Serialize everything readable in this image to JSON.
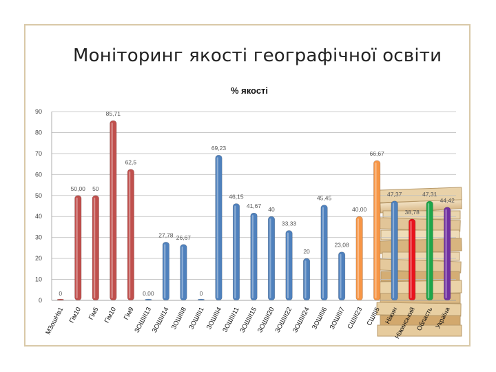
{
  "slide": {
    "title": "Моніторинг якості географічної освіти"
  },
  "chart_data": {
    "type": "bar",
    "title": "% якості",
    "xlabel": "",
    "ylabel": "",
    "ylim": [
      0,
      90
    ],
    "yticks": [
      0,
      10,
      20,
      30,
      40,
      50,
      60,
      70,
      80,
      90
    ],
    "grid": true,
    "legend": "none",
    "categories": [
      "М3ошНв1",
      "Гім10",
      "Гім5",
      "Гім10",
      "Гім9",
      "ЗОШІІІ13",
      "ЗОШІІІ14",
      "ЗОШІІІ8",
      "ЗОШІІІ1",
      "ЗОШІІІ4",
      "ЗОШІІІ11",
      "ЗОШІІІ15",
      "ЗОШІІІ20",
      "ЗОШІІІ22",
      "ЗОШІІІ24",
      "ЗОШІІІ6",
      "ЗОШІІІ7",
      "СШІІІ23",
      "СШІІІ5",
      "Ніжин",
      "Ніжинський",
      "Область",
      "Україна"
    ],
    "values": [
      0,
      50,
      50,
      85.71,
      62.5,
      0,
      27.78,
      26.67,
      0,
      69.23,
      46.15,
      41.67,
      40,
      33.33,
      20,
      45.45,
      23.08,
      40,
      66.67,
      47.37,
      38.78,
      47.31,
      44.42
    ],
    "data_labels": [
      "0",
      "50,00",
      "50",
      "85,71",
      "62,5",
      "0,00",
      "27,78",
      "26,67",
      "0",
      "69,23",
      "46,15",
      "41,67",
      "40",
      "33,33",
      "20",
      "45,45",
      "23,08",
      "40,00",
      "66,67",
      "47,37",
      "38,78",
      "47,31",
      "44,42"
    ],
    "bar_colors": [
      "#c0504d",
      "#c0504d",
      "#c0504d",
      "#c0504d",
      "#c0504d",
      "#4f81bd",
      "#4f81bd",
      "#4f81bd",
      "#4f81bd",
      "#4f81bd",
      "#4f81bd",
      "#4f81bd",
      "#4f81bd",
      "#4f81bd",
      "#4f81bd",
      "#4f81bd",
      "#4f81bd",
      "#f79646",
      "#f79646",
      "#4f81bd",
      "#e8141d",
      "#1fa64a",
      "#7030a0"
    ]
  },
  "decoration": {
    "image": "stack-of-books-illustration"
  }
}
